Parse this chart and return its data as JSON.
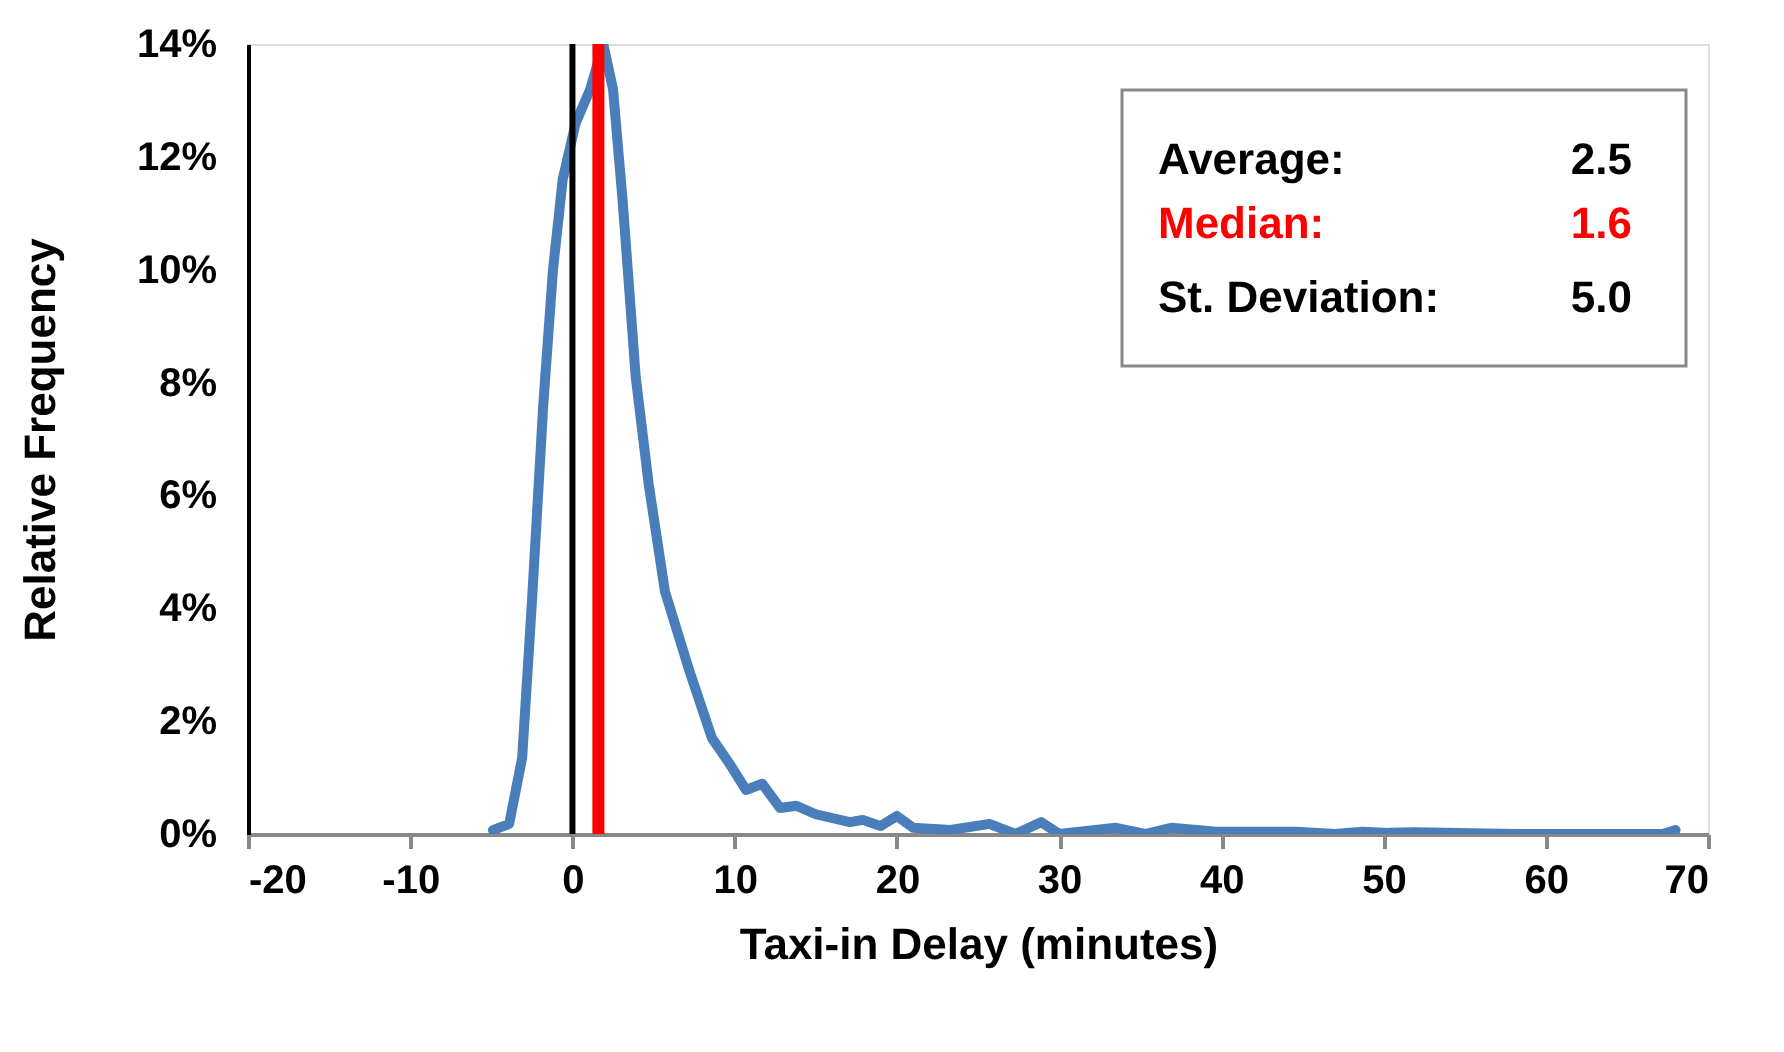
{
  "chart_data": {
    "type": "line",
    "xlabel": "Taxi-in Delay (minutes)",
    "ylabel": "Relative Frequency",
    "series": [
      {
        "color": "#4a7ebb",
        "x": [
          -4.9,
          -3.9,
          -3.1,
          -2.5,
          -1.8,
          -1.2,
          -0.6,
          0.2,
          1.1,
          1.9,
          2.5,
          3.1,
          3.9,
          4.7,
          5.7,
          7.2,
          8.6,
          9.7,
          10.7,
          11.7,
          12.8,
          13.8,
          15,
          17.1,
          17.9,
          19,
          20,
          21,
          23.3,
          25.7,
          27.3,
          28.9,
          30,
          33.5,
          35.3,
          36.9,
          39.7,
          44.6,
          47,
          48.7,
          50.3,
          51.9,
          58.2,
          67.2,
          68
        ],
        "values": [
          0.07,
          0.18,
          1.35,
          4.1,
          7.6,
          10.0,
          11.6,
          12.6,
          13.2,
          14.0,
          13.2,
          11.2,
          8.1,
          6.2,
          4.3,
          2.9,
          1.7,
          1.24,
          0.78,
          0.89,
          0.46,
          0.5,
          0.35,
          0.21,
          0.25,
          0.14,
          0.32,
          0.11,
          0.07,
          0.18,
          0,
          0.21,
          0,
          0.11,
          0,
          0.11,
          0.04,
          0.04,
          0,
          0.04,
          0.02,
          0.03,
          0,
          0,
          0.07
        ]
      }
    ],
    "xlim": [
      -20,
      70
    ],
    "xticks": [
      -20,
      -10,
      0,
      10,
      20,
      30,
      40,
      50,
      60,
      70
    ],
    "ylim": [
      0,
      14
    ],
    "yticks": [
      {
        "value": 0,
        "label": "0%"
      },
      {
        "value": 2,
        "label": "2%"
      },
      {
        "value": 4,
        "label": "4%"
      },
      {
        "value": 6,
        "label": "6%"
      },
      {
        "value": 8,
        "label": "8%"
      },
      {
        "value": 10,
        "label": "10%"
      },
      {
        "value": 12,
        "label": "12%"
      },
      {
        "value": 14,
        "label": "14%"
      }
    ],
    "ref_lines": [
      {
        "axis": "x",
        "value": 0,
        "color": "#000000"
      },
      {
        "axis": "x",
        "value": 1.6,
        "color": "#ff0000",
        "label": "Median: 1.6"
      }
    ],
    "annotations": [
      "Average: 2.5",
      "St. Deviation: 5.0"
    ],
    "grid": false,
    "marker": "none",
    "line_style": "solid"
  }
}
